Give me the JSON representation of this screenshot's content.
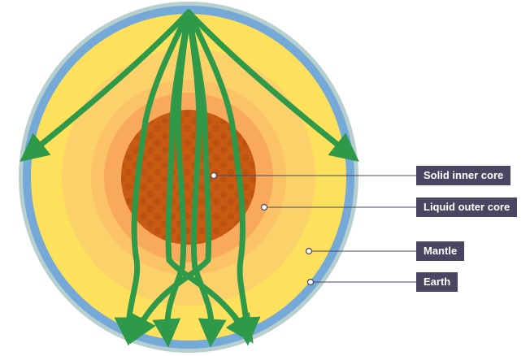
{
  "labels": {
    "inner_core": "Solid inner core",
    "outer_core": "Liquid outer core",
    "mantle": "Mantle",
    "earth": "Earth"
  },
  "colors": {
    "crust_outer": "#b8cfcf",
    "crust": "#74a9d8",
    "mantle_outer": "#fde05c",
    "mantle_inner": "#fbd26a",
    "outer_core_ring": "#fbc266",
    "outer_core": "#f8a95c",
    "inner_core": "#c95a12",
    "inner_core_spots": "#b84e10",
    "waves": "#2e9a49",
    "label_bg": "#4a4560",
    "leader": "#4a4560"
  }
}
